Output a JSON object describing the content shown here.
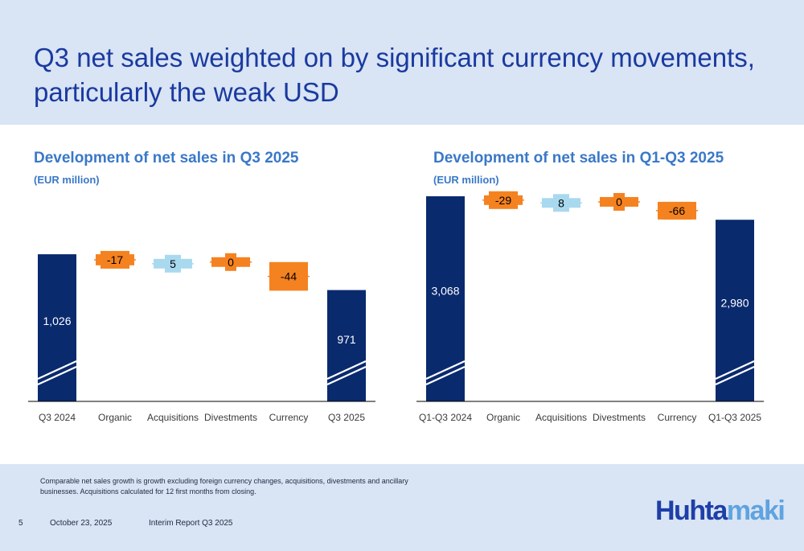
{
  "header": {
    "title": "Q3 net sales weighted on by significant currency movements, particularly the weak USD"
  },
  "colors": {
    "total": "#0a2a6e",
    "negative": "#f58220",
    "positive": "#a9d9ef",
    "axis": "#000000",
    "label_light": "#ffffff",
    "label_dark": "#000000"
  },
  "chart_data": [
    {
      "type": "waterfall",
      "title": "Development of net sales in Q3 2025",
      "unit": "(EUR million)",
      "categories": [
        "Q3 2024",
        "Organic",
        "Acquisitions",
        "Divestments",
        "Currency",
        "Q3 2025"
      ],
      "values": [
        1026,
        -17,
        5,
        0,
        -44,
        971
      ],
      "labels": [
        "1,026",
        "-17",
        "5",
        "0",
        "-44",
        "971"
      ],
      "kinds": [
        "total",
        "delta",
        "delta",
        "delta",
        "delta",
        "total"
      ],
      "y_break": true,
      "axis_break_range": [
        0,
        800
      ],
      "ylim": [
        800,
        1120
      ]
    },
    {
      "type": "waterfall",
      "title": "Development of net sales in Q1-Q3 2025",
      "unit": "(EUR million)",
      "categories": [
        "Q1-Q3 2024",
        "Organic",
        "Acquisitions",
        "Divestments",
        "Currency",
        "Q1-Q3 2025"
      ],
      "values": [
        3068,
        -29,
        8,
        0,
        -66,
        2980
      ],
      "labels": [
        "3,068",
        "-29",
        "8",
        "0",
        "-66",
        "2,980"
      ],
      "kinds": [
        "total",
        "delta",
        "delta",
        "delta",
        "delta",
        "total"
      ],
      "y_break": true,
      "axis_break_range": [
        0,
        2300
      ],
      "ylim": [
        2300,
        3080
      ]
    }
  ],
  "footer": {
    "note": "Comparable net sales growth is growth excluding foreign currency changes, acquisitions, divestments and ancillary businesses. Acquisitions calculated for 12 first months from closing.",
    "page_number": "5",
    "date": "October 23, 2025",
    "report": "Interim Report Q3 2025",
    "logo_a": "Huhta",
    "logo_b": "maki"
  }
}
